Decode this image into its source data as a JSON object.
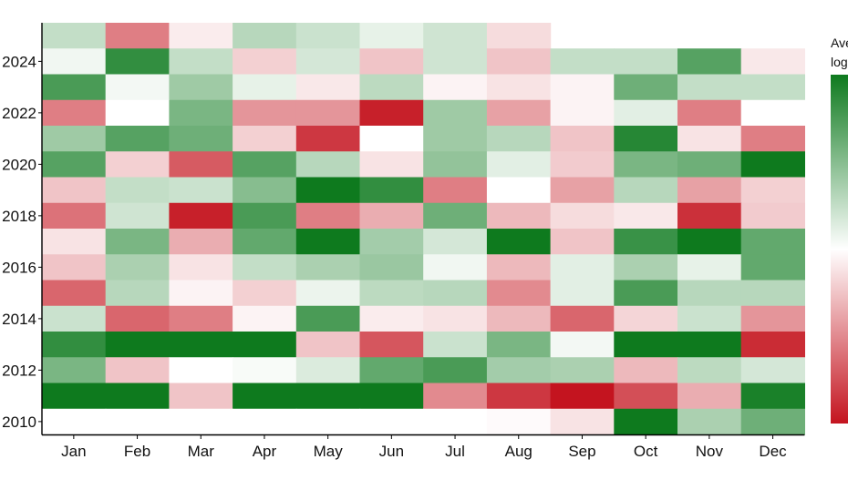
{
  "chart_data": {
    "type": "heatmap",
    "title": "",
    "xlabel": "",
    "ylabel": "",
    "colorbar": {
      "label_line1": "Ave",
      "label_line2": "log",
      "colors": {
        "high": "#0e7a1e",
        "mid": "#ffffff",
        "low": "#c4141f"
      },
      "range": [
        -1,
        1
      ]
    },
    "months": [
      "Jan",
      "Feb",
      "Mar",
      "Apr",
      "May",
      "Jun",
      "Jul",
      "Aug",
      "Sep",
      "Oct",
      "Nov",
      "Dec"
    ],
    "year_tick_labels": [
      "2024",
      "2022",
      "2020",
      "2018",
      "2016",
      "2014",
      "2012",
      "2010"
    ],
    "years": [
      2025,
      2024,
      2023,
      2022,
      2021,
      2020,
      2019,
      2018,
      2017,
      2016,
      2015,
      2014,
      2013,
      2012,
      2011,
      2010
    ],
    "values": [
      [
        0.25,
        -0.55,
        -0.08,
        0.3,
        0.22,
        0.1,
        0.2,
        -0.15,
        null,
        null,
        null,
        null
      ],
      [
        0.06,
        0.85,
        0.25,
        -0.2,
        0.18,
        -0.25,
        0.2,
        -0.25,
        0.25,
        0.25,
        0.7,
        -0.1
      ],
      [
        0.75,
        0.05,
        0.4,
        0.1,
        -0.1,
        0.28,
        -0.05,
        -0.12,
        -0.05,
        0.6,
        0.25,
        0.25
      ],
      [
        -0.55,
        0.0,
        0.55,
        -0.45,
        -0.45,
        -0.95,
        0.4,
        -0.4,
        -0.05,
        0.12,
        -0.55,
        0.0
      ],
      [
        0.4,
        0.7,
        0.6,
        -0.2,
        -0.85,
        0.0,
        0.4,
        0.3,
        -0.25,
        0.9,
        -0.12,
        -0.55
      ],
      [
        0.7,
        -0.2,
        -0.7,
        0.7,
        0.3,
        -0.12,
        0.45,
        0.12,
        -0.22,
        0.55,
        0.6,
        1.0
      ],
      [
        -0.25,
        0.25,
        0.22,
        0.5,
        1.0,
        0.85,
        -0.55,
        0.0,
        -0.4,
        0.3,
        -0.4,
        -0.2
      ],
      [
        -0.6,
        0.2,
        -0.95,
        0.75,
        -0.55,
        -0.35,
        0.6,
        -0.3,
        -0.15,
        -0.1,
        -0.88,
        -0.22
      ],
      [
        -0.12,
        0.55,
        -0.35,
        0.65,
        1.0,
        0.38,
        0.18,
        1.0,
        -0.25,
        0.82,
        1.0,
        0.65
      ],
      [
        -0.25,
        0.35,
        -0.12,
        0.25,
        0.35,
        0.42,
        0.06,
        -0.3,
        0.12,
        0.35,
        0.1,
        0.65
      ],
      [
        -0.65,
        0.3,
        -0.05,
        -0.2,
        0.08,
        0.28,
        0.3,
        -0.5,
        0.12,
        0.75,
        0.3,
        0.3
      ],
      [
        0.22,
        -0.65,
        -0.55,
        -0.05,
        0.75,
        -0.08,
        -0.12,
        -0.3,
        -0.65,
        -0.18,
        0.22,
        -0.45
      ],
      [
        0.85,
        1.0,
        1.0,
        1.0,
        -0.25,
        -0.72,
        0.22,
        0.55,
        0.05,
        1.0,
        1.0,
        -0.9
      ],
      [
        0.55,
        -0.25,
        0.0,
        0.03,
        0.15,
        0.65,
        0.75,
        0.38,
        0.35,
        -0.3,
        0.28,
        0.18
      ],
      [
        1.0,
        1.0,
        -0.25,
        1.0,
        1.0,
        1.0,
        -0.5,
        -0.85,
        -1.0,
        -0.75,
        -0.35,
        0.95
      ],
      [
        0.0,
        0.0,
        0.0,
        0.0,
        0.0,
        0.0,
        0.0,
        -0.02,
        -0.12,
        1.0,
        0.35,
        0.6
      ]
    ]
  }
}
